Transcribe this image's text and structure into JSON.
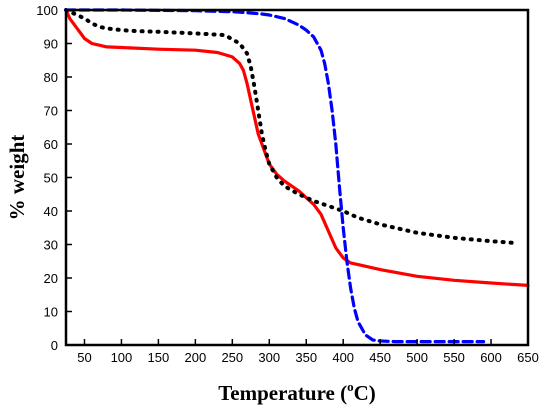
{
  "chart_data": {
    "type": "line",
    "title": "",
    "xlabel": {
      "main": "Temperature (",
      "superscript": "o",
      "unit": "C)"
    },
    "ylabel": "% weight",
    "xlim": [
      25,
      650
    ],
    "ylim": [
      0,
      100
    ],
    "xticks": [
      50,
      100,
      150,
      200,
      250,
      300,
      350,
      400,
      450,
      500,
      550,
      600,
      650
    ],
    "yticks": [
      0,
      10,
      20,
      30,
      40,
      50,
      60,
      70,
      80,
      90,
      100
    ],
    "grid": false,
    "legend": "none",
    "series": [
      {
        "color": "#ff0000",
        "style": "solid",
        "x": [
          25,
          30,
          40,
          50,
          60,
          70,
          80,
          100,
          150,
          200,
          230,
          250,
          260,
          265,
          270,
          275,
          280,
          285,
          290,
          295,
          300,
          310,
          320,
          340,
          360,
          370,
          380,
          390,
          400,
          410,
          420,
          450,
          500,
          550,
          600,
          650
        ],
        "y": [
          100,
          97.5,
          94.5,
          91.5,
          90,
          89.5,
          89,
          88.8,
          88.3,
          88,
          87.3,
          86,
          84,
          82,
          78,
          73,
          68,
          63,
          60,
          57,
          54,
          51,
          49,
          46,
          42,
          39,
          34,
          29,
          26,
          24.5,
          24,
          22.5,
          20.5,
          19.3,
          18.5,
          17.8
        ]
      },
      {
        "color": "#000000",
        "style": "dotted",
        "x": [
          25,
          30,
          40,
          50,
          60,
          70,
          80,
          100,
          120,
          150,
          200,
          240,
          260,
          270,
          275,
          280,
          285,
          290,
          295,
          300,
          310,
          320,
          340,
          360,
          380,
          400,
          420,
          450,
          500,
          550,
          600,
          630
        ],
        "y": [
          100,
          99.5,
          98.5,
          97.5,
          96,
          95,
          94.5,
          94,
          93.7,
          93.5,
          93,
          92.5,
          90,
          87,
          83,
          77,
          70,
          63,
          58,
          54,
          50,
          47.5,
          45,
          43,
          41.5,
          40,
          38,
          36,
          33.5,
          32,
          31,
          30.5
        ]
      },
      {
        "color": "#0000ff",
        "style": "dashed",
        "x": [
          25,
          50,
          100,
          200,
          250,
          270,
          290,
          300,
          310,
          320,
          330,
          340,
          350,
          360,
          370,
          375,
          380,
          385,
          390,
          395,
          400,
          405,
          410,
          415,
          420,
          430,
          440,
          450,
          470,
          500,
          550,
          590
        ],
        "y": [
          100,
          100,
          100,
          99.8,
          99.5,
          99.2,
          98.8,
          98.5,
          98,
          97.5,
          96.5,
          95.5,
          94,
          92,
          88,
          84,
          78,
          70,
          60,
          47,
          35,
          25,
          17,
          11,
          7,
          3,
          1.5,
          1.2,
          1,
          1,
          1,
          1
        ]
      }
    ]
  }
}
